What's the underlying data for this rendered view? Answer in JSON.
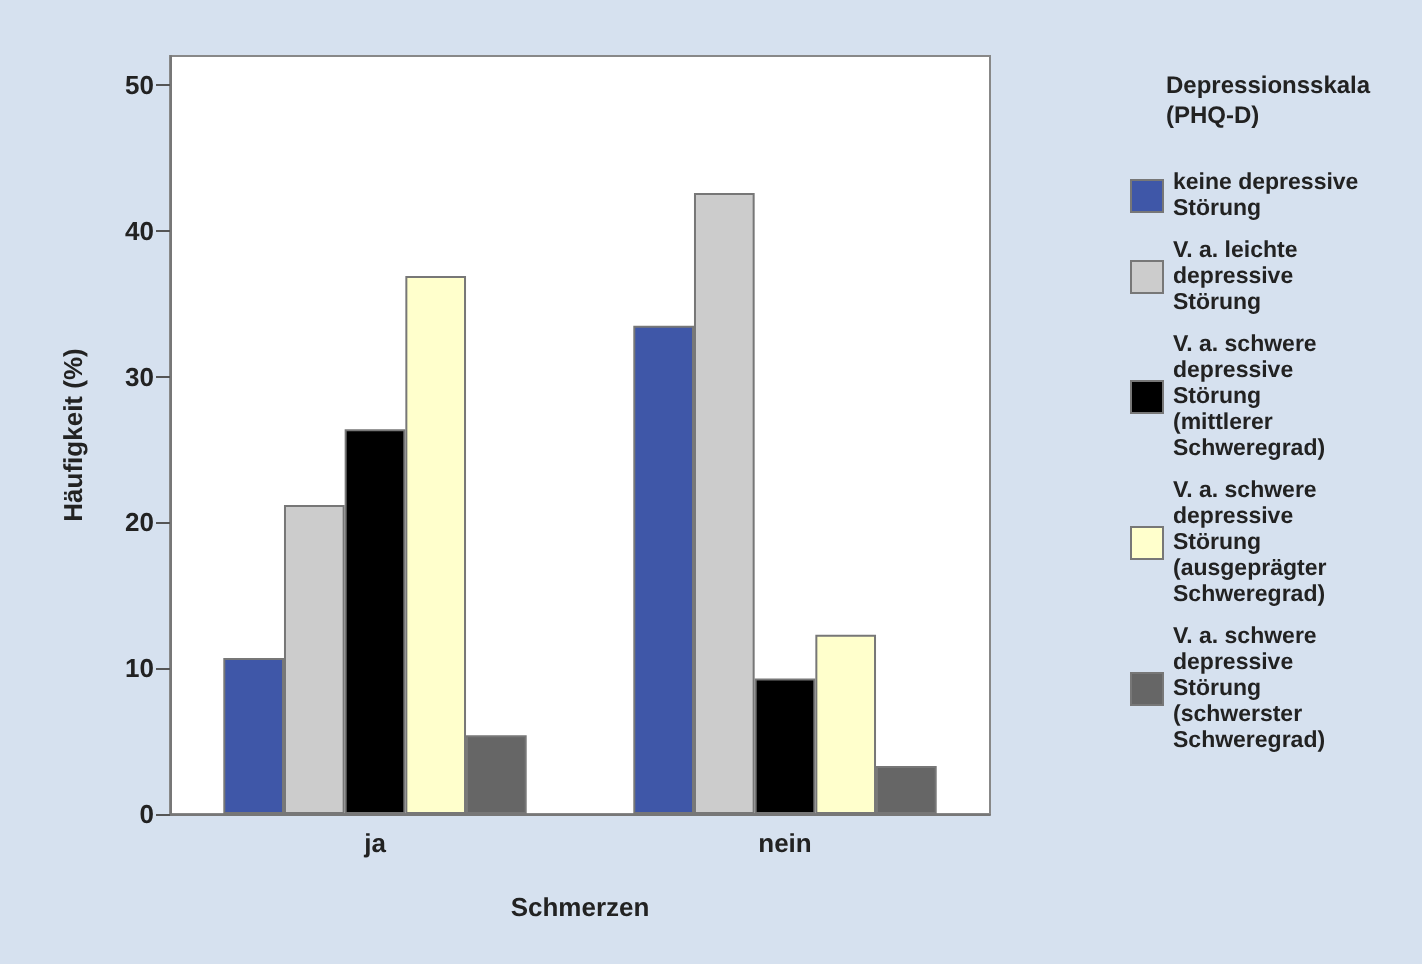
{
  "chart_data": {
    "type": "bar",
    "xlabel": "Schmerzen",
    "ylabel": "Häufigkeit (%)",
    "legend_title": "Depressionsskala (PHQ-D)",
    "categories": [
      "ja",
      "nein"
    ],
    "series": [
      {
        "name": "keine depressive Störung",
        "color": "#3f57a8",
        "values": [
          10.7,
          33.5
        ]
      },
      {
        "name": "V. a. leichte depressive Störung",
        "color": "#cccccc",
        "values": [
          21.2,
          42.6
        ]
      },
      {
        "name": "V. a. schwere depressive Störung (mittlerer Schweregrad)",
        "color": "#000000",
        "values": [
          26.4,
          9.3
        ]
      },
      {
        "name": "V. a. schwere depressive Störung (ausgeprägter Schweregrad)",
        "color": "#ffffcc",
        "values": [
          36.9,
          12.3
        ]
      },
      {
        "name": "V. a. schwere depressive Störung (schwerster Schweregrad)",
        "color": "#666666",
        "values": [
          5.4,
          3.3
        ]
      }
    ],
    "ylim": [
      0,
      52
    ],
    "yticks": [
      0,
      10,
      20,
      30,
      40,
      50
    ],
    "grid": false,
    "legend": "right"
  }
}
